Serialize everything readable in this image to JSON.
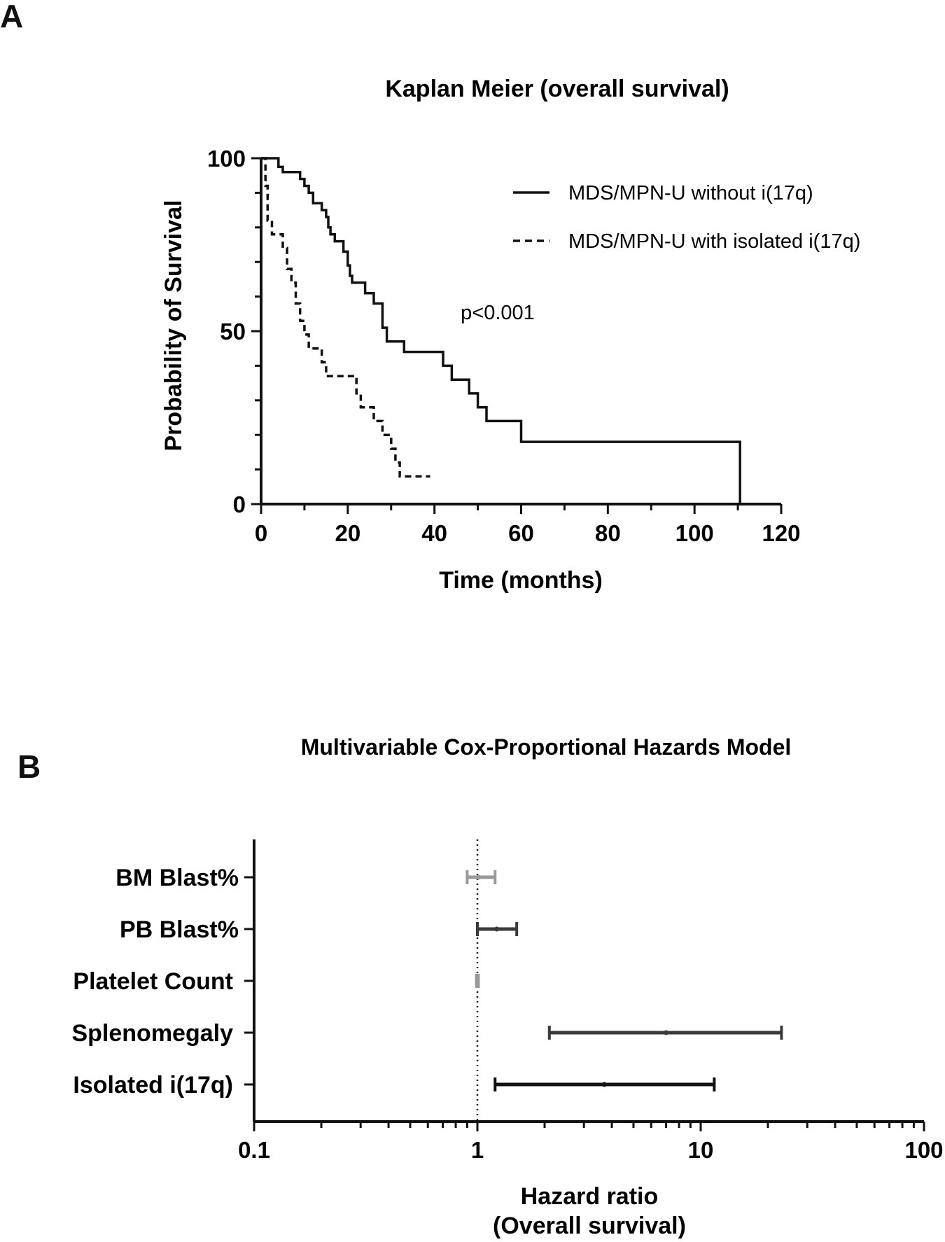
{
  "chart_data": [
    {
      "panel": "A",
      "type": "line",
      "subtype": "kaplan-meier",
      "title": "Kaplan Meier (overall survival)",
      "xlabel": "Time (months)",
      "ylabel": "Probability of Survival",
      "xlim": [
        0,
        120
      ],
      "ylim": [
        0,
        100
      ],
      "xticks": [
        "0",
        "20",
        "40",
        "60",
        "80",
        "100",
        "120"
      ],
      "yticks": [
        "0",
        "50",
        "100"
      ],
      "annotation": "p<0.001",
      "legend_position": "top-right",
      "series": [
        {
          "name": "MDS/MPN-U without i(17q)",
          "style": "solid",
          "points": [
            [
              0,
              100
            ],
            [
              4,
              100
            ],
            [
              4,
              97.5
            ],
            [
              5,
              97.5
            ],
            [
              5,
              96
            ],
            [
              9,
              96
            ],
            [
              9,
              94
            ],
            [
              10,
              94
            ],
            [
              10,
              92
            ],
            [
              11,
              92
            ],
            [
              11,
              90
            ],
            [
              12,
              90
            ],
            [
              12,
              87
            ],
            [
              14,
              87
            ],
            [
              14,
              85
            ],
            [
              15,
              85
            ],
            [
              15,
              83
            ],
            [
              15.5,
              83
            ],
            [
              15.5,
              80
            ],
            [
              16,
              80
            ],
            [
              16,
              78
            ],
            [
              17,
              78
            ],
            [
              17,
              76
            ],
            [
              19,
              76
            ],
            [
              19,
              73
            ],
            [
              20,
              73
            ],
            [
              20,
              69
            ],
            [
              20.5,
              69
            ],
            [
              20.5,
              66
            ],
            [
              21,
              66
            ],
            [
              21,
              64
            ],
            [
              24,
              64
            ],
            [
              24,
              61
            ],
            [
              26,
              61
            ],
            [
              26,
              58
            ],
            [
              28,
              58
            ],
            [
              28,
              51
            ],
            [
              29,
              51
            ],
            [
              29,
              47
            ],
            [
              33,
              47
            ],
            [
              33,
              44
            ],
            [
              42,
              44
            ],
            [
              42,
              40
            ],
            [
              44,
              40
            ],
            [
              44,
              36
            ],
            [
              48,
              36
            ],
            [
              48,
              32
            ],
            [
              50,
              32
            ],
            [
              50,
              28
            ],
            [
              52,
              28
            ],
            [
              52,
              24
            ],
            [
              60,
              24
            ],
            [
              60,
              18
            ],
            [
              110.5,
              18
            ],
            [
              110.5,
              0
            ]
          ]
        },
        {
          "name": "MDS/MPN-U with isolated i(17q)",
          "style": "dashed",
          "points": [
            [
              0,
              100
            ],
            [
              1,
              100
            ],
            [
              1,
              92
            ],
            [
              1.5,
              92
            ],
            [
              1.5,
              82
            ],
            [
              2.5,
              82
            ],
            [
              2.5,
              78
            ],
            [
              5,
              78
            ],
            [
              5,
              74
            ],
            [
              6,
              74
            ],
            [
              6,
              68
            ],
            [
              7,
              68
            ],
            [
              7,
              64
            ],
            [
              8,
              64
            ],
            [
              8,
              58
            ],
            [
              9,
              58
            ],
            [
              9,
              53
            ],
            [
              10,
              53
            ],
            [
              10,
              49
            ],
            [
              11,
              49
            ],
            [
              11,
              45
            ],
            [
              14,
              45
            ],
            [
              14,
              41
            ],
            [
              15,
              41
            ],
            [
              15,
              37
            ],
            [
              22,
              37
            ],
            [
              22,
              32
            ],
            [
              23,
              32
            ],
            [
              23,
              28
            ],
            [
              26,
              28
            ],
            [
              26,
              24
            ],
            [
              28,
              24
            ],
            [
              28,
              20
            ],
            [
              30,
              20
            ],
            [
              30,
              16
            ],
            [
              31,
              16
            ],
            [
              31,
              12
            ],
            [
              32,
              12
            ],
            [
              32,
              8
            ],
            [
              39,
              8
            ]
          ]
        }
      ]
    },
    {
      "panel": "B",
      "type": "forest",
      "title": "Multivariable Cox-Proportional Hazards Model",
      "xlabel": [
        "Hazard ratio",
        "(Overall survival)"
      ],
      "xscale": "log",
      "xlim": [
        0.1,
        100
      ],
      "xticks": [
        "0.1",
        "1",
        "10",
        "100"
      ],
      "reference_line": 1,
      "rows": [
        {
          "label": "BM Blast%",
          "hr": 1.01,
          "lower": 0.9,
          "upper": 1.2,
          "color": "#9a9a9a"
        },
        {
          "label": "PB Blast%",
          "hr": 1.22,
          "lower": 1.0,
          "upper": 1.5,
          "color": "#3a3a3a"
        },
        {
          "label": "Platelet Count",
          "hr": 1.0,
          "lower": 0.99,
          "upper": 1.01,
          "color": "#9a9a9a"
        },
        {
          "label": "Splenomegaly",
          "hr": 7.0,
          "lower": 2.1,
          "upper": 23.0,
          "color": "#3a3a3a"
        },
        {
          "label": "Isolated i(17q)",
          "hr": 3.7,
          "lower": 1.2,
          "upper": 11.5,
          "color": "#111111"
        }
      ]
    }
  ],
  "panels": {
    "a": "A",
    "b": "B"
  }
}
